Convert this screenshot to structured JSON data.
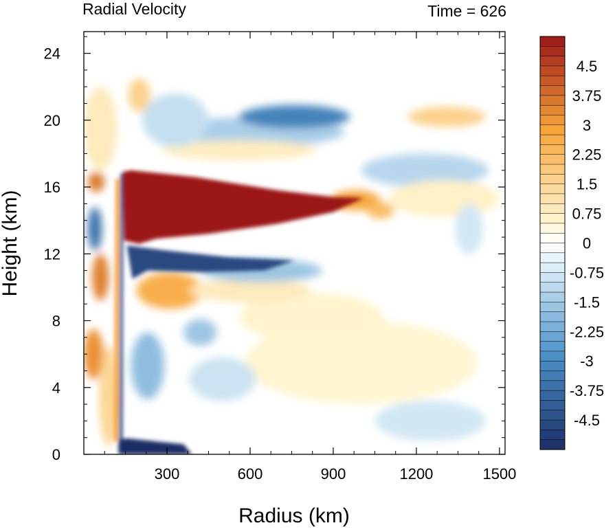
{
  "chart_data": {
    "type": "heatmap",
    "title": "Radial Velocity",
    "subtitle": "Time = 626",
    "xlabel": "Radius (km)",
    "ylabel": "Height (km)",
    "xlim": [
      0,
      1520
    ],
    "ylim": [
      0,
      25.3
    ],
    "x_ticks": [
      300,
      600,
      900,
      1200,
      1500
    ],
    "y_ticks": [
      0,
      4,
      8,
      12,
      16,
      20,
      24
    ],
    "colorbar": {
      "min": -5.25,
      "max": 5.25,
      "step": 0.25,
      "labels": [
        "4.5",
        "3.75",
        "3",
        "2.25",
        "1.5",
        "0.75",
        "0",
        "-0.75",
        "-1.5",
        "-2.25",
        "-3",
        "-3.75",
        "-4.5"
      ],
      "label_values": [
        4.5,
        3.75,
        3,
        2.25,
        1.5,
        0.75,
        0,
        -0.75,
        -1.5,
        -2.25,
        -3,
        -3.75,
        -4.5
      ],
      "colormap": "blue-white-red",
      "colors": {
        "neg_max": "#1c2f66",
        "neg_mid": "#4a90c8",
        "neg_low": "#dceef8",
        "zero": "#ffffff",
        "pos_low": "#fff3cc",
        "pos_mid": "#f7a43a",
        "pos_max": "#9b1818"
      }
    },
    "features": [
      {
        "name": "outflow-jet",
        "sign": "positive",
        "r": [
          110,
          1020
        ],
        "z": [
          12.5,
          17.0
        ],
        "max": 5.25
      },
      {
        "name": "return-inflow",
        "sign": "negative",
        "r": [
          150,
          760
        ],
        "z": [
          10.6,
          12.8
        ],
        "max": -5.0
      },
      {
        "name": "boundary-inflow",
        "sign": "negative",
        "r": [
          110,
          380
        ],
        "z": [
          0,
          0.9
        ],
        "max": -5.25
      },
      {
        "name": "upper-inflow",
        "sign": "negative",
        "r": [
          300,
          1000
        ],
        "z": [
          19.2,
          20.8
        ],
        "max": -3.5
      },
      {
        "name": "upper-outflow",
        "sign": "positive",
        "r": [
          1150,
          1420
        ],
        "z": [
          19.6,
          20.6
        ],
        "max": 1.8
      },
      {
        "name": "mid-outflow",
        "sign": "positive",
        "r": [
          200,
          420
        ],
        "z": [
          8.2,
          10.4
        ],
        "max": 3.0
      }
    ]
  }
}
